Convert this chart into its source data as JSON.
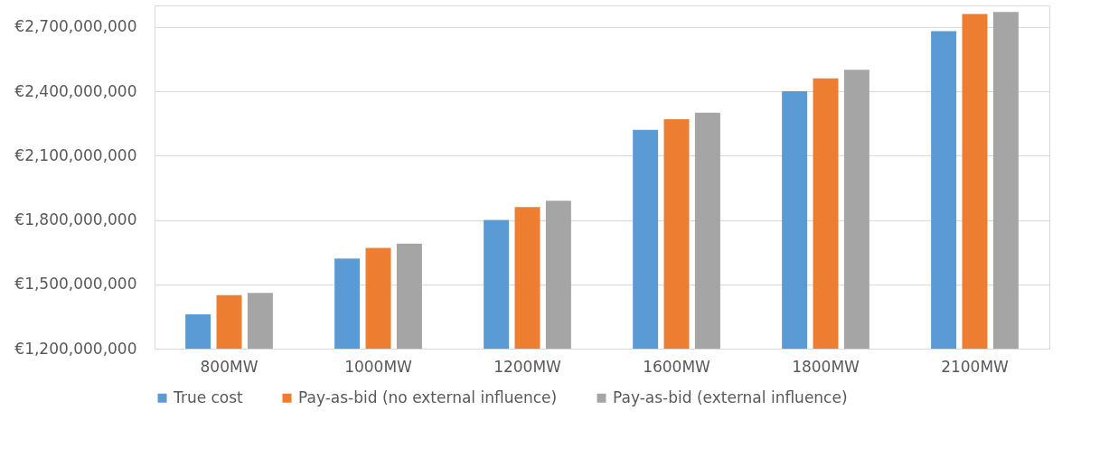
{
  "chart_data": {
    "type": "bar",
    "categories": [
      "800MW",
      "1000MW",
      "1200MW",
      "1600MW",
      "1800MW",
      "2100MW"
    ],
    "series": [
      {
        "name": "True cost",
        "color": "#5b9bd5",
        "values": [
          1360000000,
          1620000000,
          1800000000,
          2220000000,
          2400000000,
          2680000000
        ]
      },
      {
        "name": "Pay-as-bid (no external influence)",
        "color": "#ed7d31",
        "values": [
          1450000000,
          1670000000,
          1860000000,
          2270000000,
          2460000000,
          2760000000
        ]
      },
      {
        "name": "Pay-as-bid (external influence)",
        "color": "#a5a5a5",
        "values": [
          1460000000,
          1690000000,
          1890000000,
          2300000000,
          2500000000,
          2770000000
        ]
      }
    ],
    "ylim": [
      1200000000,
      2800000000
    ],
    "yticks": [
      {
        "value": 1200000000,
        "label": "€1,200,000,000"
      },
      {
        "value": 1500000000,
        "label": "€1,500,000,000"
      },
      {
        "value": 1800000000,
        "label": "€1,800,000,000"
      },
      {
        "value": 2100000000,
        "label": "€2,100,000,000"
      },
      {
        "value": 2400000000,
        "label": "€2,400,000,000"
      },
      {
        "value": 2700000000,
        "label": "€2,700,000,000"
      }
    ],
    "grid": "y",
    "legend": "bottom"
  }
}
